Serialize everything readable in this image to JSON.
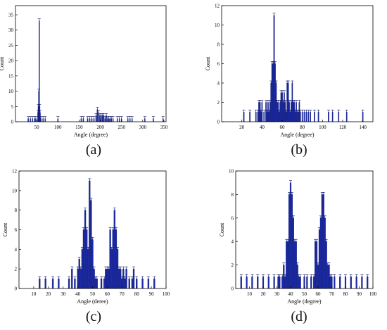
{
  "colors": {
    "bar_fill": "#1a2aa8",
    "bar_stroke": "#0b1060",
    "axis": "#000000"
  },
  "chart_data": [
    {
      "type": "bar",
      "panel_label": "(a)",
      "xlabel": "Angle (degree)",
      "ylabel": "Count",
      "xlim": [
        0,
        355
      ],
      "ylim": [
        0,
        38
      ],
      "xticks": [
        50,
        100,
        150,
        200,
        250,
        300,
        350
      ],
      "yticks": [
        0,
        5,
        10,
        15,
        20,
        25,
        30,
        35
      ],
      "bin_width": 1,
      "bars": [
        [
          30,
          1
        ],
        [
          35,
          1
        ],
        [
          40,
          1
        ],
        [
          45,
          1
        ],
        [
          48,
          1
        ],
        [
          53,
          3
        ],
        [
          54,
          5
        ],
        [
          55,
          10
        ],
        [
          56,
          33
        ],
        [
          57,
          5
        ],
        [
          58,
          3
        ],
        [
          60,
          1
        ],
        [
          65,
          1
        ],
        [
          70,
          1
        ],
        [
          100,
          1
        ],
        [
          155,
          1
        ],
        [
          160,
          1
        ],
        [
          170,
          1
        ],
        [
          175,
          1
        ],
        [
          180,
          1
        ],
        [
          185,
          1
        ],
        [
          190,
          2
        ],
        [
          193,
          4
        ],
        [
          196,
          3
        ],
        [
          199,
          2
        ],
        [
          202,
          2
        ],
        [
          205,
          2
        ],
        [
          208,
          2
        ],
        [
          211,
          1
        ],
        [
          214,
          2
        ],
        [
          217,
          1
        ],
        [
          220,
          1
        ],
        [
          223,
          1
        ],
        [
          226,
          1
        ],
        [
          230,
          1
        ],
        [
          240,
          1
        ],
        [
          245,
          1
        ],
        [
          250,
          1
        ],
        [
          265,
          1
        ],
        [
          270,
          1
        ],
        [
          275,
          1
        ],
        [
          305,
          1
        ],
        [
          325,
          1
        ],
        [
          348,
          1
        ]
      ]
    },
    {
      "type": "bar",
      "panel_label": "(b)",
      "xlabel": "Angle (degree)",
      "ylabel": "Count",
      "xlim": [
        0,
        150
      ],
      "ylim": [
        0,
        12
      ],
      "xticks": [
        20,
        40,
        60,
        80,
        100,
        120,
        140
      ],
      "yticks": [
        0,
        2,
        4,
        6,
        8,
        10,
        12
      ],
      "bin_width": 1,
      "bars": [
        [
          22,
          1
        ],
        [
          28,
          1
        ],
        [
          34,
          1
        ],
        [
          36,
          1
        ],
        [
          37,
          2
        ],
        [
          38,
          2
        ],
        [
          39,
          1
        ],
        [
          40,
          2
        ],
        [
          42,
          1
        ],
        [
          44,
          2
        ],
        [
          45,
          1
        ],
        [
          46,
          2
        ],
        [
          47,
          1
        ],
        [
          48,
          2
        ],
        [
          49,
          4
        ],
        [
          50,
          6
        ],
        [
          51,
          6
        ],
        [
          52,
          11
        ],
        [
          53,
          6
        ],
        [
          54,
          4
        ],
        [
          55,
          2
        ],
        [
          56,
          2
        ],
        [
          57,
          1
        ],
        [
          58,
          2
        ],
        [
          59,
          3
        ],
        [
          60,
          3
        ],
        [
          61,
          2
        ],
        [
          62,
          3
        ],
        [
          63,
          2
        ],
        [
          64,
          1
        ],
        [
          65,
          4
        ],
        [
          66,
          4
        ],
        [
          67,
          2
        ],
        [
          68,
          1
        ],
        [
          69,
          2
        ],
        [
          70,
          4
        ],
        [
          71,
          2
        ],
        [
          72,
          2
        ],
        [
          73,
          1
        ],
        [
          74,
          2
        ],
        [
          75,
          1
        ],
        [
          76,
          1
        ],
        [
          77,
          2
        ],
        [
          78,
          1
        ],
        [
          80,
          1
        ],
        [
          82,
          1
        ],
        [
          84,
          1
        ],
        [
          86,
          1
        ],
        [
          88,
          1
        ],
        [
          92,
          1
        ],
        [
          96,
          1
        ],
        [
          106,
          1
        ],
        [
          110,
          1
        ],
        [
          116,
          1
        ],
        [
          124,
          1
        ],
        [
          140,
          1
        ]
      ]
    },
    {
      "type": "bar",
      "panel_label": "(c)",
      "xlabel": "Angle (deree)",
      "ylabel": "Count",
      "xlim": [
        0,
        100
      ],
      "ylim": [
        0,
        12
      ],
      "xticks": [
        10,
        20,
        30,
        40,
        50,
        60,
        70,
        80,
        90,
        100
      ],
      "yticks": [
        0,
        2,
        4,
        6,
        8,
        10,
        12
      ],
      "bin_width": 1,
      "bars": [
        [
          14,
          1
        ],
        [
          18,
          1
        ],
        [
          23,
          1
        ],
        [
          27,
          1
        ],
        [
          34,
          1
        ],
        [
          36,
          2
        ],
        [
          38,
          1
        ],
        [
          40,
          2
        ],
        [
          41,
          3
        ],
        [
          42,
          2
        ],
        [
          43,
          4
        ],
        [
          44,
          6
        ],
        [
          45,
          8
        ],
        [
          46,
          6
        ],
        [
          47,
          4
        ],
        [
          48,
          11
        ],
        [
          49,
          9
        ],
        [
          50,
          5
        ],
        [
          51,
          2
        ],
        [
          52,
          1
        ],
        [
          53,
          1
        ],
        [
          56,
          1
        ],
        [
          58,
          1
        ],
        [
          59,
          2
        ],
        [
          60,
          2
        ],
        [
          61,
          2
        ],
        [
          62,
          6
        ],
        [
          63,
          4
        ],
        [
          64,
          6
        ],
        [
          65,
          8
        ],
        [
          66,
          6
        ],
        [
          67,
          4
        ],
        [
          68,
          2
        ],
        [
          69,
          2
        ],
        [
          70,
          1
        ],
        [
          71,
          2
        ],
        [
          72,
          1
        ],
        [
          73,
          2
        ],
        [
          75,
          1
        ],
        [
          77,
          1
        ],
        [
          78,
          2
        ],
        [
          80,
          1
        ],
        [
          84,
          1
        ],
        [
          88,
          1
        ],
        [
          92,
          1
        ]
      ]
    },
    {
      "type": "bar",
      "panel_label": "(d)",
      "xlabel": "Angle (degree)",
      "ylabel": "Count",
      "xlim": [
        0,
        100
      ],
      "ylim": [
        0,
        10
      ],
      "xticks": [
        10,
        20,
        30,
        40,
        50,
        60,
        70,
        80,
        90,
        100
      ],
      "yticks": [
        0,
        2,
        4,
        6,
        8,
        10
      ],
      "bin_width": 1,
      "bars": [
        [
          4,
          1
        ],
        [
          8,
          1
        ],
        [
          12,
          1
        ],
        [
          16,
          1
        ],
        [
          20,
          1
        ],
        [
          24,
          1
        ],
        [
          28,
          1
        ],
        [
          31,
          1
        ],
        [
          32,
          1
        ],
        [
          34,
          1
        ],
        [
          35,
          2
        ],
        [
          36,
          1
        ],
        [
          37,
          4
        ],
        [
          38,
          4
        ],
        [
          39,
          8
        ],
        [
          40,
          9
        ],
        [
          41,
          8
        ],
        [
          42,
          6
        ],
        [
          43,
          4
        ],
        [
          44,
          4
        ],
        [
          45,
          2
        ],
        [
          46,
          1
        ],
        [
          47,
          1
        ],
        [
          50,
          1
        ],
        [
          52,
          1
        ],
        [
          55,
          1
        ],
        [
          57,
          1
        ],
        [
          58,
          4
        ],
        [
          59,
          4
        ],
        [
          60,
          2
        ],
        [
          61,
          5
        ],
        [
          62,
          6
        ],
        [
          63,
          8
        ],
        [
          64,
          8
        ],
        [
          65,
          6
        ],
        [
          66,
          4
        ],
        [
          67,
          2
        ],
        [
          68,
          2
        ],
        [
          69,
          1
        ],
        [
          70,
          1
        ],
        [
          72,
          1
        ],
        [
          76,
          1
        ],
        [
          80,
          1
        ],
        [
          84,
          1
        ],
        [
          88,
          1
        ],
        [
          92,
          1
        ],
        [
          96,
          1
        ]
      ]
    }
  ]
}
